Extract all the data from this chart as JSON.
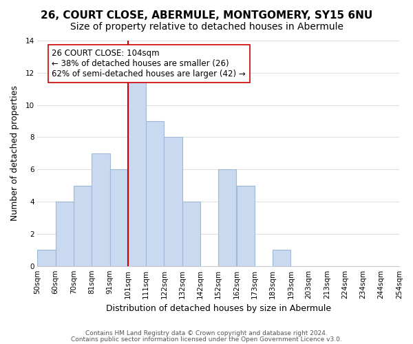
{
  "title_line1": "26, COURT CLOSE, ABERMULE, MONTGOMERY, SY15 6NU",
  "title_line2": "Size of property relative to detached houses in Abermule",
  "xlabel": "Distribution of detached houses by size in Abermule",
  "ylabel": "Number of detached properties",
  "footer_line1": "Contains HM Land Registry data © Crown copyright and database right 2024.",
  "footer_line2": "Contains public sector information licensed under the Open Government Licence v3.0.",
  "bin_labels": [
    "50sqm",
    "60sqm",
    "70sqm",
    "81sqm",
    "91sqm",
    "101sqm",
    "111sqm",
    "122sqm",
    "132sqm",
    "142sqm",
    "152sqm",
    "162sqm",
    "173sqm",
    "183sqm",
    "193sqm",
    "203sqm",
    "213sqm",
    "224sqm",
    "234sqm",
    "244sqm",
    "254sqm"
  ],
  "bar_heights": [
    1,
    4,
    5,
    7,
    6,
    12,
    9,
    8,
    4,
    0,
    6,
    5,
    0,
    1,
    0,
    0,
    0,
    0,
    0,
    0
  ],
  "bar_color": "#c8d9f0",
  "bar_edgecolor": "#a0b8d8",
  "property_line_color": "#cc0000",
  "annotation_text": "26 COURT CLOSE: 104sqm\n← 38% of detached houses are smaller (26)\n62% of semi-detached houses are larger (42) →",
  "annotation_box_edgecolor": "#cc0000",
  "annotation_box_facecolor": "#ffffff",
  "ylim": [
    0,
    14
  ],
  "yticks": [
    0,
    2,
    4,
    6,
    8,
    10,
    12,
    14
  ],
  "grid_color": "#e0e0e0",
  "background_color": "#ffffff",
  "title_fontsize": 11,
  "subtitle_fontsize": 10,
  "xlabel_fontsize": 9,
  "ylabel_fontsize": 9,
  "tick_fontsize": 7.5,
  "annotation_fontsize": 8.5,
  "footer_fontsize": 6.5
}
